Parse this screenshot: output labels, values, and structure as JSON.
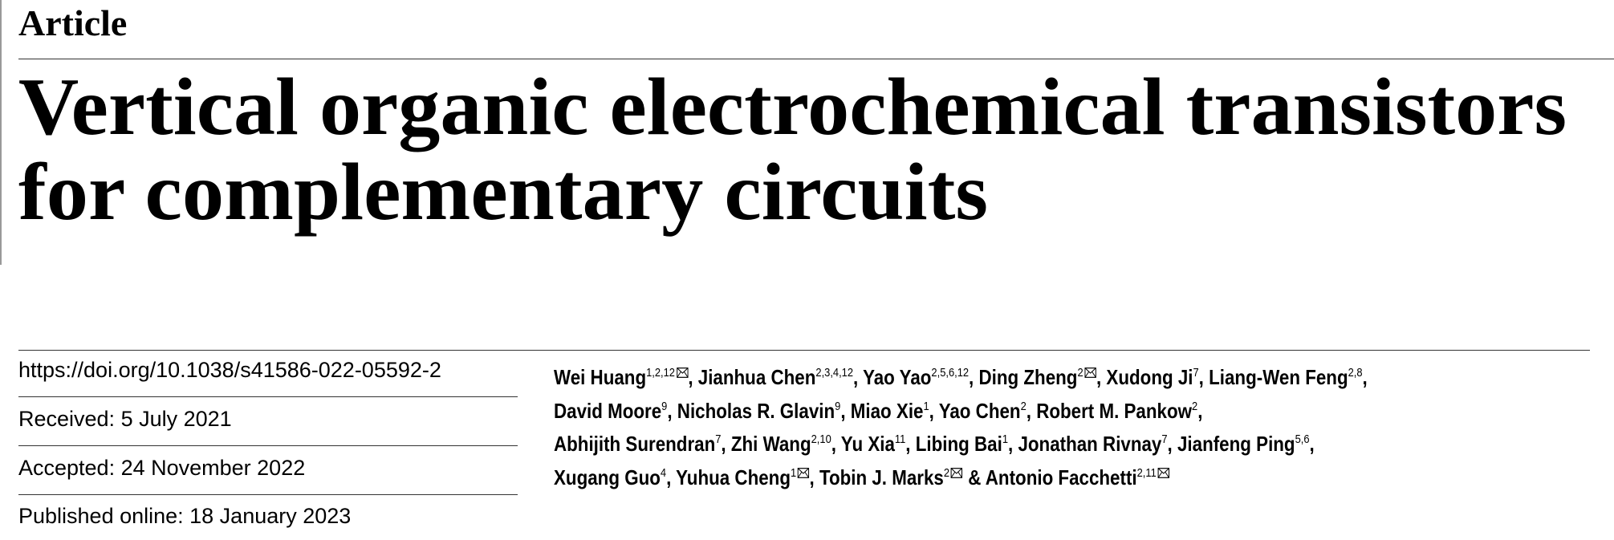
{
  "header": {
    "section": "Article",
    "title_lines": [
      "Vertical organic electrochemical transistors",
      "for complementary circuits"
    ]
  },
  "metadata": {
    "doi": "https://doi.org/10.1038/s41586-022-05592-2",
    "received": "Received: 5 July 2021",
    "accepted": "Accepted: 24 November 2022",
    "published": "Published online: 18 January 2023"
  },
  "author_lines": [
    [
      {
        "name": "Wei Huang",
        "affiliations": "1,2,12",
        "corresponding": true,
        "separator": ","
      },
      {
        "name": "Jianhua Chen",
        "affiliations": "2,3,4,12",
        "corresponding": false,
        "separator": ","
      },
      {
        "name": "Yao Yao",
        "affiliations": "2,5,6,12",
        "corresponding": false,
        "separator": ","
      },
      {
        "name": "Ding Zheng",
        "affiliations": "2",
        "corresponding": true,
        "separator": ","
      },
      {
        "name": "Xudong Ji",
        "affiliations": "7",
        "corresponding": false,
        "separator": ","
      },
      {
        "name": "Liang-Wen Feng",
        "affiliations": "2,8",
        "corresponding": false,
        "separator": ","
      }
    ],
    [
      {
        "name": "David Moore",
        "affiliations": "9",
        "corresponding": false,
        "separator": ","
      },
      {
        "name": "Nicholas R. Glavin",
        "affiliations": "9",
        "corresponding": false,
        "separator": ","
      },
      {
        "name": "Miao Xie",
        "affiliations": "1",
        "corresponding": false,
        "separator": ","
      },
      {
        "name": "Yao Chen",
        "affiliations": "2",
        "corresponding": false,
        "separator": ","
      },
      {
        "name": "Robert M. Pankow",
        "affiliations": "2",
        "corresponding": false,
        "separator": ","
      }
    ],
    [
      {
        "name": "Abhijith Surendran",
        "affiliations": "7",
        "corresponding": false,
        "separator": ","
      },
      {
        "name": "Zhi Wang",
        "affiliations": "2,10",
        "corresponding": false,
        "separator": ","
      },
      {
        "name": "Yu Xia",
        "affiliations": "11",
        "corresponding": false,
        "separator": ","
      },
      {
        "name": "Libing Bai",
        "affiliations": "1",
        "corresponding": false,
        "separator": ","
      },
      {
        "name": "Jonathan Rivnay",
        "affiliations": "7",
        "corresponding": false,
        "separator": ","
      },
      {
        "name": "Jianfeng Ping",
        "affiliations": "5,6",
        "corresponding": false,
        "separator": ","
      }
    ],
    [
      {
        "name": "Xugang Guo",
        "affiliations": "4",
        "corresponding": false,
        "separator": ","
      },
      {
        "name": "Yuhua Cheng",
        "affiliations": "1",
        "corresponding": true,
        "separator": ","
      },
      {
        "name": "Tobin J. Marks",
        "affiliations": "2",
        "corresponding": true,
        "separator": "&"
      },
      {
        "name": "Antonio Facchetti",
        "affiliations": "2,11",
        "corresponding": true
      }
    ]
  ]
}
